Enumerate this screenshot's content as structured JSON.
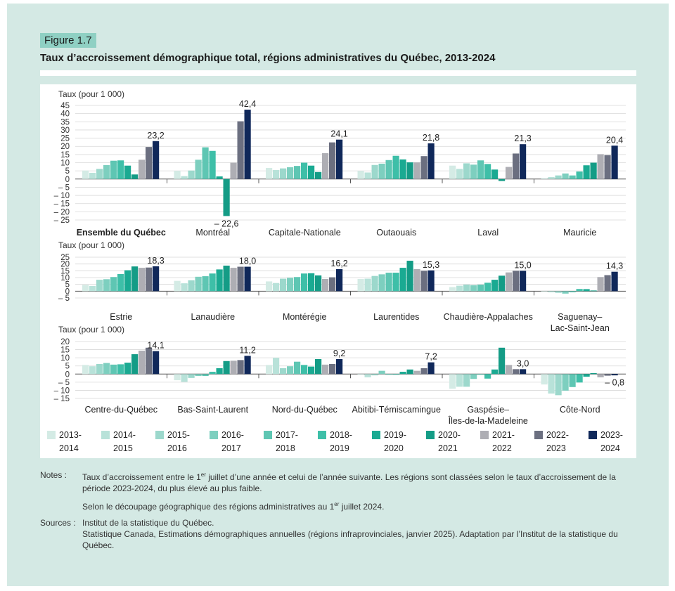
{
  "figure": {
    "label": "Figure 1.7",
    "title": "Taux d’accroissement démographique total, régions administratives du Québec, 2013-2024"
  },
  "notes": {
    "notes_label": "Notes :",
    "note_1_main": "Taux d’accroissement entre le 1",
    "note_1_sup": "er",
    "note_1_rest": " juillet d’une année et celui de l’année suivante. Les régions sont classées selon le taux d’accroissement de la période 2023-2024, du plus élevé au plus faible.",
    "note_2_main": "Selon le découpage géographique des régions administratives au 1",
    "note_2_sup": "er",
    "note_2_rest": " juillet 2024.",
    "sources_label": "Sources :",
    "source_1": "Institut de la statistique du Québec.",
    "source_2": "Statistique Canada, Estimations démographiques annuelles (régions infraprovinciales, janvier 2025). Adaptation par l’Institut de la statistique du Québec."
  },
  "chart_data": {
    "type": "bar",
    "title": "Taux d’accroissement démographique total, régions administratives du Québec, 2013-2024",
    "series_names": [
      "2013-2014",
      "2014-2015",
      "2015-2016",
      "2016-2017",
      "2017-2018",
      "2018-2019",
      "2019-2020",
      "2020-2021",
      "2021-2022",
      "2022-2023",
      "2023-2024"
    ],
    "series_colors": [
      "#d4ebe5",
      "#b8e2d9",
      "#9cd8cc",
      "#7dcfbf",
      "#5ec6b3",
      "#3ebfa8",
      "#1aaa92",
      "#149c86",
      "#aeaeb4",
      "#6b6f80",
      "#10285a"
    ],
    "panels": [
      {
        "ylabel": "Taux (pour 1 000)",
        "ylim": [
          -25,
          45
        ],
        "ticks": [
          45,
          40,
          35,
          30,
          25,
          20,
          15,
          10,
          5,
          0,
          -5,
          -10,
          -15,
          -20,
          -25
        ],
        "tick_labels": [
          "45",
          "40",
          "35",
          "30",
          "25",
          "20",
          "15",
          "10",
          "5",
          "0",
          "– 5",
          "– 10",
          "– 15",
          "– 20",
          "– 25"
        ],
        "regions": [
          {
            "name": [
              "Ensemble du Québec"
            ],
            "bold": true,
            "values": [
              5.2,
              3.8,
              6.2,
              8.5,
              11.2,
              11.4,
              8.2,
              2.8,
              11.8,
              19.6,
              23.2
            ],
            "label": "23,2"
          },
          {
            "name": [
              "Montréal"
            ],
            "bold": false,
            "values": [
              5.0,
              1.8,
              5.2,
              11.8,
              19.4,
              17.2,
              1.6,
              -22.6,
              10.0,
              35.3,
              42.4
            ],
            "label": "42,4",
            "label2": "– 22,6"
          },
          {
            "name": [
              "Capitale-Nationale"
            ],
            "bold": false,
            "values": [
              6.8,
              5.5,
              6.5,
              7.2,
              8.0,
              10.0,
              8.2,
              4.3,
              15.8,
              22.4,
              24.1
            ],
            "label": "24,1"
          },
          {
            "name": [
              "Outaouais"
            ],
            "bold": false,
            "values": [
              5.0,
              4.0,
              8.6,
              9.4,
              11.6,
              14.2,
              12.0,
              10.2,
              10.2,
              14.0,
              21.8
            ],
            "label": "21,8"
          },
          {
            "name": [
              "Laval"
            ],
            "bold": false,
            "values": [
              8.2,
              6.2,
              9.6,
              8.8,
              11.4,
              9.2,
              5.8,
              -1.2,
              7.4,
              15.6,
              21.3
            ],
            "label": "21,3"
          },
          {
            "name": [
              "Mauricie"
            ],
            "bold": false,
            "values": [
              0.5,
              1.2,
              2.2,
              3.4,
              2.2,
              4.6,
              8.4,
              10.0,
              15.2,
              14.6,
              20.4
            ],
            "label": "20,4"
          }
        ]
      },
      {
        "ylabel": "Taux (pour 1 000)",
        "ylim": [
          -5,
          25
        ],
        "ticks": [
          25,
          20,
          15,
          10,
          5,
          0,
          -5
        ],
        "tick_labels": [
          "25",
          "20",
          "15",
          "10",
          "5",
          "0",
          "– 5"
        ],
        "regions": [
          {
            "name": [
              "Estrie"
            ],
            "bold": false,
            "values": [
              4.6,
              3.8,
              8.4,
              8.8,
              10.4,
              12.6,
              15.4,
              18.2,
              17.2,
              17.4,
              18.3
            ],
            "label": "18,3"
          },
          {
            "name": [
              "Lanaudière"
            ],
            "bold": false,
            "values": [
              7.6,
              5.8,
              8.0,
              10.6,
              11.0,
              13.0,
              16.0,
              18.8,
              17.2,
              18.0,
              18.0
            ],
            "label": "18,0"
          },
          {
            "name": [
              "Montérégie"
            ],
            "bold": false,
            "values": [
              7.2,
              6.0,
              9.2,
              9.8,
              10.4,
              13.0,
              13.2,
              11.6,
              9.0,
              10.2,
              16.2
            ],
            "label": "16,2"
          },
          {
            "name": [
              "Laurentides"
            ],
            "bold": false,
            "values": [
              9.0,
              9.2,
              11.2,
              12.4,
              13.6,
              13.6,
              17.2,
              22.4,
              16.2,
              15.0,
              15.3
            ],
            "label": "15,3"
          },
          {
            "name": [
              "Chaudière-Appalaches"
            ],
            "bold": false,
            "values": [
              3.0,
              4.0,
              4.8,
              4.4,
              4.8,
              6.2,
              8.4,
              11.4,
              13.8,
              15.0,
              15.0
            ],
            "label": "15,0"
          },
          {
            "name": [
              "Saguenay–",
              "Lac-Saint-Jean"
            ],
            "bold": false,
            "values": [
              -0.4,
              -0.8,
              -1.2,
              -1.8,
              -0.8,
              1.6,
              1.5,
              0.5,
              10.4,
              11.8,
              14.3
            ],
            "label": "14,3"
          }
        ]
      },
      {
        "ylabel": "Taux (pour 1 000)",
        "ylim": [
          -15,
          20
        ],
        "ticks": [
          20,
          15,
          10,
          5,
          0,
          -5,
          -10,
          -15
        ],
        "tick_labels": [
          "20",
          "15",
          "10",
          "5",
          "0",
          "– 5",
          "– 10",
          "– 15"
        ],
        "regions": [
          {
            "name": [
              "Centre-du-Québec"
            ],
            "bold": false,
            "values": [
              5.6,
              4.8,
              6.2,
              6.8,
              5.8,
              6.0,
              7.0,
              12.2,
              14.4,
              16.2,
              14.1
            ],
            "label": "14,1"
          },
          {
            "name": [
              "Bas-Saint-Laurent"
            ],
            "bold": false,
            "values": [
              -3.8,
              -4.8,
              -2.4,
              -1.2,
              -1.2,
              1.4,
              3.6,
              8.0,
              8.2,
              8.6,
              11.2
            ],
            "label": "11,2"
          },
          {
            "name": [
              "Nord-du-Québec"
            ],
            "bold": false,
            "values": [
              5.6,
              10.0,
              3.6,
              4.8,
              7.6,
              5.6,
              4.6,
              9.2,
              5.8,
              6.2,
              9.2
            ],
            "label": "9,2"
          },
          {
            "name": [
              "Abitibi-Témiscamingue"
            ],
            "bold": false,
            "values": [
              -0.4,
              -2.0,
              -0.8,
              2.0,
              -0.4,
              -0.4,
              1.4,
              2.8,
              2.0,
              3.6,
              7.2
            ],
            "label": "7,2"
          },
          {
            "name": [
              "Gaspésie–",
              "Îles-de-la-Madeleine"
            ],
            "bold": false,
            "values": [
              -9.0,
              -7.8,
              -7.8,
              -3.0,
              -0.4,
              -2.8,
              2.8,
              16.2,
              5.6,
              3.0,
              3.0
            ],
            "label": "3,0"
          },
          {
            "name": [
              "Côte-Nord"
            ],
            "bold": false,
            "values": [
              -6.4,
              -12.0,
              -13.0,
              -10.2,
              -8.0,
              -5.2,
              -1.6,
              0.6,
              -2.0,
              -1.0,
              -0.8
            ],
            "label": "– 0,8"
          }
        ]
      }
    ],
    "legend": [
      [
        "2013-",
        "2014"
      ],
      [
        "2014-",
        "2015"
      ],
      [
        "2015-",
        "2016"
      ],
      [
        "2016-",
        "2017"
      ],
      [
        "2017-",
        "2018"
      ],
      [
        "2018-",
        "2019"
      ],
      [
        "2019-",
        "2020"
      ],
      [
        "2020-",
        "2021"
      ],
      [
        "2021-",
        "2022"
      ],
      [
        "2022-",
        "2023"
      ],
      [
        "2023-",
        "2024"
      ]
    ]
  }
}
